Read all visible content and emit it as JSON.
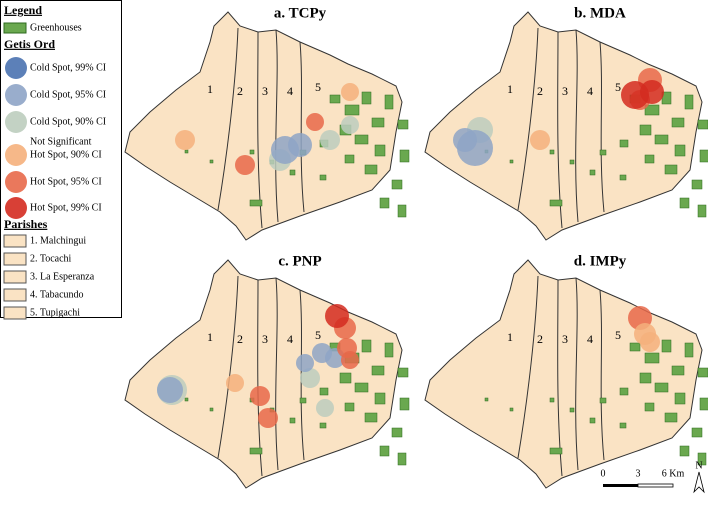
{
  "legend": {
    "title": "Legend",
    "greenhouses": "Greenhouses",
    "getis_title": "Getis Ord",
    "getis_items": [
      {
        "label": "Cold Spot, 99% CI",
        "color": "#4a72b0"
      },
      {
        "label": "Cold Spot, 95% CI",
        "color": "#8ea4c6"
      },
      {
        "label": "Cold Spot, 90% CI",
        "color": "#bccdbe"
      },
      {
        "label": "Not Significant"
      },
      {
        "label": "Hot Spot, 90% CI",
        "color": "#f5b07c"
      },
      {
        "label": "Hot Spot, 95% CI",
        "color": "#e8694a"
      },
      {
        "label": "Hot Spot, 99% CI",
        "color": "#d42b20"
      }
    ],
    "parishes_title": "Parishes",
    "parishes": [
      "1. Malchingui",
      "2. Tocachi",
      "3. La Esperanza",
      "4. Tabacundo",
      "5. Tupigachi"
    ]
  },
  "panels": [
    {
      "title": "a. TCPy"
    },
    {
      "title": "b. MDA"
    },
    {
      "title": "c. PNP"
    },
    {
      "title": "d. IMPy"
    }
  ],
  "parish_numbers": [
    "1",
    "2",
    "3",
    "4",
    "5"
  ],
  "scale": {
    "labels": [
      "0",
      "3",
      "6 Km"
    ]
  },
  "north": "N"
}
